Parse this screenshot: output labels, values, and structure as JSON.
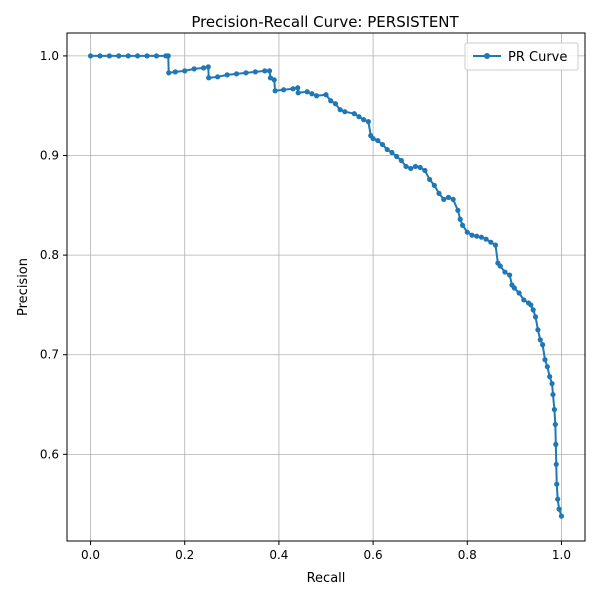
{
  "chart_data": {
    "type": "line",
    "title": "Precision-Recall Curve: PERSISTENT",
    "xlabel": "Recall",
    "ylabel": "Precision",
    "xlim": [
      -0.05,
      1.05
    ],
    "ylim": [
      0.513,
      1.023
    ],
    "xticks": [
      0.0,
      0.2,
      0.4,
      0.6,
      0.8,
      1.0
    ],
    "xtick_labels": [
      "0.0",
      "0.2",
      "0.4",
      "0.6",
      "0.8",
      "1.0"
    ],
    "yticks": [
      0.6,
      0.7,
      0.8,
      0.9,
      1.0
    ],
    "ytick_labels": [
      "0.6",
      "0.7",
      "0.8",
      "0.9",
      "1.0"
    ],
    "grid": true,
    "legend": "top-right",
    "series": [
      {
        "name": "PR Curve",
        "color": "#1f77b4",
        "marker": "circle",
        "x": [
          0.0,
          0.02,
          0.04,
          0.06,
          0.08,
          0.1,
          0.12,
          0.14,
          0.16,
          0.165,
          0.166,
          0.18,
          0.2,
          0.22,
          0.24,
          0.25,
          0.251,
          0.27,
          0.29,
          0.31,
          0.33,
          0.35,
          0.37,
          0.38,
          0.382,
          0.39,
          0.392,
          0.41,
          0.43,
          0.44,
          0.441,
          0.46,
          0.47,
          0.48,
          0.5,
          0.51,
          0.52,
          0.53,
          0.54,
          0.56,
          0.57,
          0.58,
          0.59,
          0.595,
          0.6,
          0.61,
          0.62,
          0.63,
          0.64,
          0.65,
          0.66,
          0.67,
          0.68,
          0.69,
          0.7,
          0.71,
          0.72,
          0.73,
          0.74,
          0.75,
          0.76,
          0.77,
          0.78,
          0.785,
          0.79,
          0.8,
          0.81,
          0.82,
          0.83,
          0.84,
          0.85,
          0.86,
          0.865,
          0.87,
          0.88,
          0.89,
          0.895,
          0.9,
          0.91,
          0.92,
          0.93,
          0.935,
          0.94,
          0.945,
          0.95,
          0.955,
          0.96,
          0.965,
          0.97,
          0.975,
          0.98,
          0.982,
          0.985,
          0.987,
          0.988,
          0.989,
          0.99,
          0.992,
          0.995,
          1.0
        ],
        "y": [
          1.0,
          1.0,
          1.0,
          1.0,
          1.0,
          1.0,
          1.0,
          1.0,
          1.0,
          1.0,
          0.983,
          0.984,
          0.985,
          0.987,
          0.988,
          0.989,
          0.978,
          0.979,
          0.981,
          0.982,
          0.983,
          0.984,
          0.985,
          0.985,
          0.978,
          0.976,
          0.965,
          0.966,
          0.967,
          0.968,
          0.963,
          0.964,
          0.962,
          0.96,
          0.961,
          0.955,
          0.952,
          0.946,
          0.944,
          0.942,
          0.939,
          0.936,
          0.934,
          0.92,
          0.917,
          0.915,
          0.911,
          0.906,
          0.903,
          0.899,
          0.895,
          0.889,
          0.887,
          0.889,
          0.888,
          0.885,
          0.876,
          0.87,
          0.862,
          0.856,
          0.858,
          0.856,
          0.845,
          0.836,
          0.83,
          0.823,
          0.82,
          0.819,
          0.818,
          0.816,
          0.813,
          0.81,
          0.792,
          0.789,
          0.783,
          0.78,
          0.77,
          0.767,
          0.762,
          0.755,
          0.752,
          0.75,
          0.745,
          0.738,
          0.725,
          0.715,
          0.71,
          0.695,
          0.688,
          0.678,
          0.671,
          0.66,
          0.645,
          0.63,
          0.61,
          0.59,
          0.57,
          0.555,
          0.545,
          0.538
        ]
      }
    ]
  }
}
